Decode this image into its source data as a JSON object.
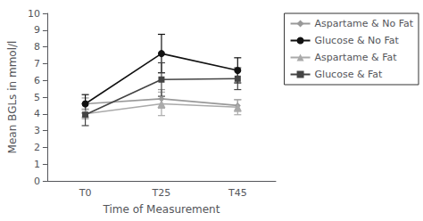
{
  "chart_data": {
    "type": "line",
    "xlabel": "Time of Measurement",
    "ylabel": "Mean BGLs in mmol/l",
    "categories": [
      "T0",
      "T25",
      "T45"
    ],
    "series": [
      {
        "name": "Aspartame & No Fat",
        "color": "#999999",
        "marker": "diamond",
        "values": [
          4.6,
          4.9,
          4.5
        ],
        "yerr": [
          0.35,
          0.55,
          0.35
        ]
      },
      {
        "name": "Glucose & No Fat",
        "color": "#111111",
        "marker": "circle",
        "values": [
          4.6,
          7.6,
          6.6
        ],
        "yerr": [
          0.55,
          1.15,
          0.75
        ]
      },
      {
        "name": "Aspartame & Fat",
        "color": "#aaaaaa",
        "marker": "triangle",
        "values": [
          4.0,
          4.6,
          4.4
        ],
        "yerr": [
          0.3,
          0.7,
          0.45
        ]
      },
      {
        "name": "Glucose & Fat",
        "color": "#444444",
        "marker": "square",
        "values": [
          3.95,
          6.05,
          6.1
        ],
        "yerr": [
          0.65,
          1.0,
          0.65
        ]
      }
    ],
    "ylim": [
      0,
      10
    ],
    "yticks": [
      0,
      1,
      2,
      3,
      4,
      5,
      6,
      7,
      8,
      9,
      10
    ],
    "grid": false,
    "legend": "right"
  }
}
